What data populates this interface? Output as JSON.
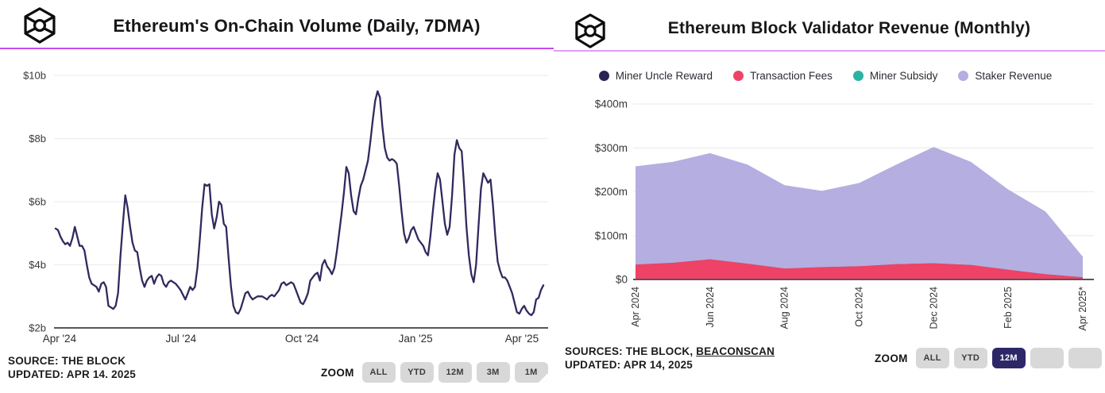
{
  "left_chart": {
    "title": "Ethereum's On-Chain Volume (Daily, 7DMA)",
    "source_line1": "SOURCE: THE BLOCK",
    "source_line2": "UPDATED: APR 14. 2025",
    "zoom_label": "ZOOM",
    "zoom_buttons": [
      {
        "label": "ALL",
        "selected": false
      },
      {
        "label": "YTD",
        "selected": false
      },
      {
        "label": "12M",
        "selected": false
      },
      {
        "label": "3M",
        "selected": false
      },
      {
        "label": "1M",
        "selected": false
      }
    ]
  },
  "right_chart": {
    "title": "Ethereum Block Validator Revenue (Monthly)",
    "sources_prefix": "SOURCES: THE BLOCK, ",
    "sources_link": "BEACONSCAN",
    "source_line2": "UPDATED: APR 14, 2025",
    "zoom_label": "ZOOM",
    "zoom_buttons": [
      {
        "label": "ALL",
        "selected": false
      },
      {
        "label": "YTD",
        "selected": false
      },
      {
        "label": "12M",
        "selected": true
      },
      {
        "label": "",
        "selected": false
      },
      {
        "label": "",
        "selected": false
      }
    ]
  },
  "colors": {
    "accent_divider": "#c44df2",
    "line_series": "#32295e",
    "gridline": "#ededed",
    "axis_line": "#56565e",
    "zoom_selected_bg": "#2e2767",
    "zoom_btn_bg": "#d8d8d8"
  },
  "chart_data": [
    {
      "type": "line",
      "title": "Ethereum's On-Chain Volume (Daily, 7DMA)",
      "unit": "USD billions",
      "series_name": "On-Chain Volume (Daily, 7DMA)",
      "color": "#32295e",
      "ylim": [
        2,
        10.3
      ],
      "grid": true,
      "y_ticks": [
        {
          "label": "$10b",
          "value": 10
        },
        {
          "label": "$8b",
          "value": 8
        },
        {
          "label": "$6b",
          "value": 6
        },
        {
          "label": "$4b",
          "value": 4
        },
        {
          "label": "$2b",
          "value": 2
        }
      ],
      "x_ticks": [
        {
          "label": "Apr '24",
          "pos": 0.008
        },
        {
          "label": "Jul '24",
          "pos": 0.257
        },
        {
          "label": "Oct '24",
          "pos": 0.505
        },
        {
          "label": "Jan '25",
          "pos": 0.738
        },
        {
          "label": "Apr '25",
          "pos": 0.956
        }
      ],
      "x_domain": [
        "Apr 2024",
        "mid-Apr 2025"
      ],
      "values": [
        5.15,
        5.1,
        4.9,
        4.75,
        4.65,
        4.7,
        4.6,
        4.85,
        5.2,
        4.9,
        4.6,
        4.6,
        4.45,
        4.0,
        3.6,
        3.4,
        3.35,
        3.3,
        3.15,
        3.4,
        3.45,
        3.3,
        2.7,
        2.65,
        2.6,
        2.7,
        3.1,
        4.3,
        5.3,
        6.2,
        5.8,
        5.2,
        4.7,
        4.45,
        4.4,
        3.9,
        3.5,
        3.3,
        3.5,
        3.6,
        3.65,
        3.4,
        3.6,
        3.7,
        3.65,
        3.4,
        3.3,
        3.45,
        3.5,
        3.45,
        3.4,
        3.3,
        3.2,
        3.05,
        2.9,
        3.1,
        3.3,
        3.2,
        3.3,
        3.9,
        4.8,
        5.8,
        6.55,
        6.5,
        6.55,
        5.6,
        5.15,
        5.5,
        6.0,
        5.9,
        5.3,
        5.2,
        4.2,
        3.3,
        2.7,
        2.5,
        2.45,
        2.6,
        2.85,
        3.1,
        3.15,
        3.0,
        2.9,
        2.95,
        3.0,
        3.0,
        3.0,
        2.95,
        2.9,
        3.0,
        3.05,
        3.0,
        3.1,
        3.2,
        3.4,
        3.45,
        3.35,
        3.4,
        3.45,
        3.4,
        3.2,
        3.0,
        2.8,
        2.75,
        2.9,
        3.1,
        3.5,
        3.6,
        3.7,
        3.75,
        3.5,
        4.0,
        4.15,
        3.95,
        3.85,
        3.7,
        3.9,
        4.4,
        5.0,
        5.6,
        6.3,
        7.1,
        6.9,
        6.2,
        5.7,
        5.6,
        6.1,
        6.5,
        6.7,
        7.0,
        7.3,
        7.9,
        8.6,
        9.2,
        9.5,
        9.3,
        8.4,
        7.7,
        7.4,
        7.3,
        7.35,
        7.3,
        7.2,
        6.5,
        5.7,
        5.0,
        4.7,
        4.85,
        5.1,
        5.2,
        5.0,
        4.8,
        4.7,
        4.6,
        4.4,
        4.3,
        4.9,
        5.7,
        6.4,
        6.9,
        6.7,
        6.0,
        5.3,
        4.95,
        5.2,
        6.2,
        7.5,
        7.95,
        7.7,
        7.6,
        6.5,
        5.2,
        4.3,
        3.7,
        3.45,
        4.0,
        5.2,
        6.4,
        6.9,
        6.75,
        6.6,
        6.7,
        5.9,
        4.9,
        4.1,
        3.8,
        3.6,
        3.6,
        3.5,
        3.3,
        3.1,
        2.8,
        2.5,
        2.45,
        2.6,
        2.7,
        2.55,
        2.45,
        2.4,
        2.5,
        2.9,
        2.95,
        3.2,
        3.35
      ]
    },
    {
      "type": "stacked_area",
      "title": "Ethereum Block Validator Revenue (Monthly)",
      "unit": "USD millions",
      "ylim": [
        0,
        400
      ],
      "grid": true,
      "legend_position": "top",
      "y_ticks": [
        {
          "label": "$400m",
          "value": 400
        },
        {
          "label": "$300m",
          "value": 300
        },
        {
          "label": "$200m",
          "value": 200
        },
        {
          "label": "$100m",
          "value": 100
        },
        {
          "label": "$0",
          "value": 0
        }
      ],
      "categories": [
        "Apr 2024",
        "May 2024",
        "Jun 2024",
        "Jul 2024",
        "Aug 2024",
        "Sep 2024",
        "Oct 2024",
        "Nov 2024",
        "Dec 2024",
        "Jan 2025",
        "Feb 2025",
        "Mar 2025",
        "Apr 2025*"
      ],
      "x_tick_every": 2,
      "series": [
        {
          "name": "Miner Uncle Reward",
          "color": "#2a2356",
          "values": [
            0,
            0,
            0,
            0,
            0,
            0,
            0,
            0,
            0,
            0,
            0,
            0,
            0
          ]
        },
        {
          "name": "Transaction Fees",
          "color": "#ee4266",
          "values": [
            34,
            38,
            46,
            36,
            25,
            28,
            30,
            35,
            37,
            33,
            22,
            12,
            5
          ]
        },
        {
          "name": "Miner Subsidy",
          "color": "#29b3a4",
          "values": [
            0,
            0,
            0,
            0,
            0,
            0,
            0,
            0,
            0,
            0,
            0,
            0,
            0
          ]
        },
        {
          "name": "Staker Revenue",
          "color": "#b5aee0",
          "values": [
            224,
            230,
            242,
            226,
            190,
            174,
            190,
            227,
            265,
            235,
            183,
            143,
            47
          ]
        }
      ]
    }
  ]
}
